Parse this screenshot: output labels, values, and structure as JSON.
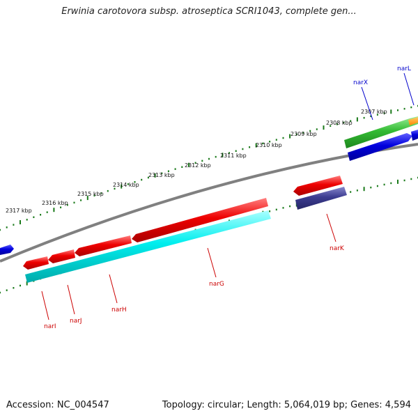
{
  "title": "Erwinia carotovora subsp. atroseptica SCRI1043, complete gen...",
  "accession": "Accession: NC_004547",
  "summary": "Topology: circular; Length: 5,064,019 bp; Genes: 4,594",
  "colors": {
    "backbone": "#808080",
    "forward_tick": "#1a7a1a",
    "red": "#ee0000",
    "cyan": "#00eeee",
    "blue": "#0000dd",
    "green": "#33bb33",
    "orange": "#ff8800",
    "slate": "#3c3c90",
    "red_label": "#cc0000",
    "blue_label": "#0000cc"
  },
  "scale_labels": [
    "2317 kbp",
    "2316 kbp",
    "2315 kbp",
    "2314 kbp",
    "2313 kbp",
    "2312 kbp",
    "2311 kbp",
    "2310 kbp",
    "2309 kbp",
    "2308 kbp",
    "2307 kbp"
  ],
  "gene_labels": [
    {
      "name": "narI",
      "color": "red"
    },
    {
      "name": "narJ",
      "color": "red"
    },
    {
      "name": "narH",
      "color": "red"
    },
    {
      "name": "narG",
      "color": "red"
    },
    {
      "name": "narK",
      "color": "red"
    },
    {
      "name": "narX",
      "color": "blue"
    },
    {
      "name": "narL",
      "color": "blue"
    }
  ]
}
